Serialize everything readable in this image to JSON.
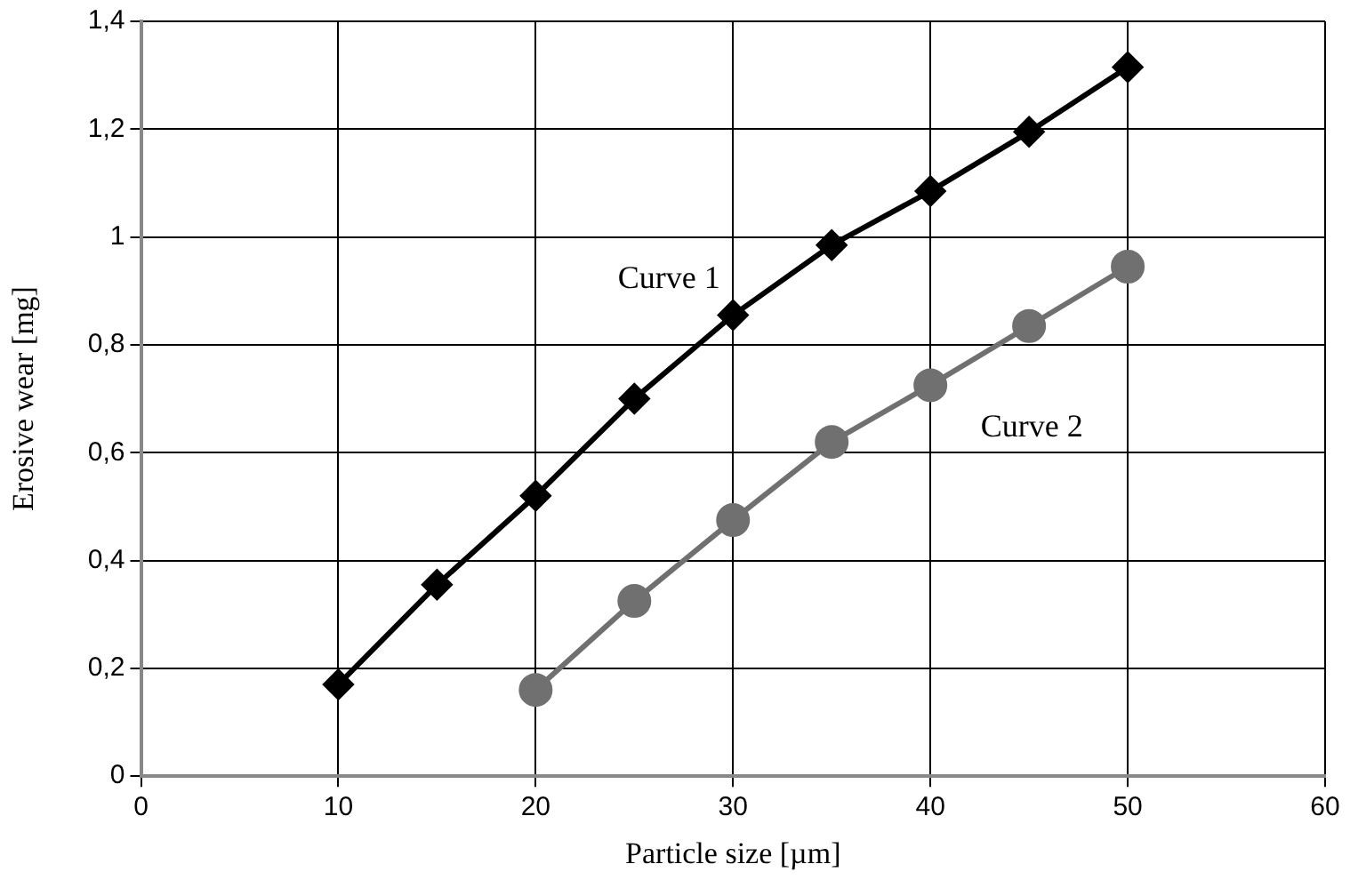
{
  "chart_data": {
    "type": "line",
    "xlabel": "Particle size [µm]",
    "ylabel": "Erosive wear [mg]",
    "xlim": [
      0,
      60
    ],
    "xticks": [
      0,
      10,
      20,
      30,
      40,
      50,
      60
    ],
    "ylim": [
      0,
      1.4
    ],
    "yticks": [
      0,
      {
        "value": 0.2,
        "label": "0,2"
      },
      {
        "value": 0.4,
        "label": "0,4"
      },
      {
        "value": 0.6,
        "label": "0,6"
      },
      {
        "value": 0.8,
        "label": "0,8"
      },
      1,
      {
        "value": 1.2,
        "label": "1,2"
      },
      {
        "value": 1.4,
        "label": "1,4"
      }
    ],
    "grid": true,
    "legend": false,
    "series": [
      {
        "name": "Curve 1",
        "color": "#000000",
        "marker": "diamond",
        "x": [
          10,
          15,
          20,
          25,
          30,
          35,
          40,
          45,
          50
        ],
        "values": [
          0.17,
          0.355,
          0.52,
          0.7,
          0.855,
          0.985,
          1.085,
          1.195,
          1.315
        ]
      },
      {
        "name": "Curve 2",
        "color": "#707070",
        "marker": "circle",
        "x": [
          20,
          25,
          30,
          35,
          40,
          45,
          50
        ],
        "values": [
          0.16,
          0.325,
          0.475,
          0.62,
          0.725,
          0.835,
          0.945
        ]
      }
    ]
  }
}
